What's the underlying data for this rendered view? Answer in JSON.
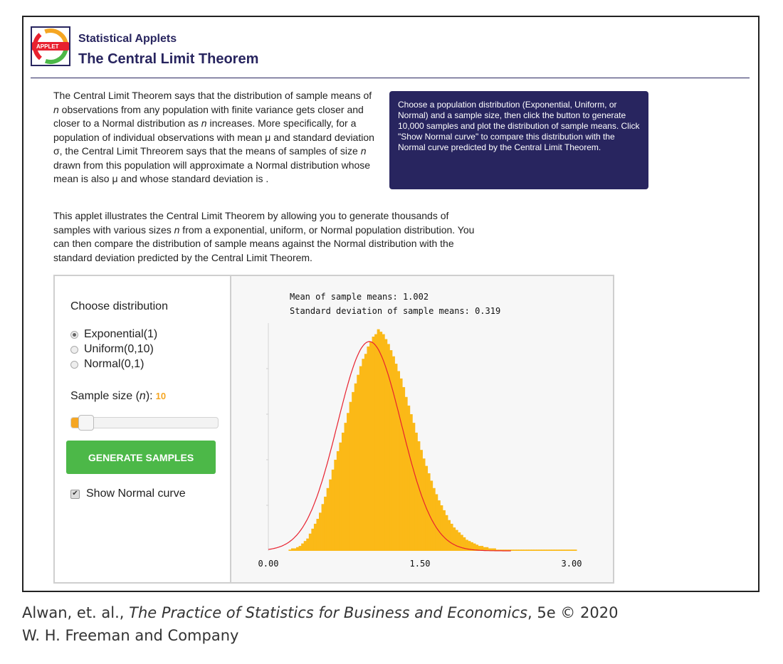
{
  "header": {
    "logo_text": "APPLET",
    "subtitle": "Statistical Applets",
    "title": "The Central Limit Theorem"
  },
  "intro": {
    "p1_parts": [
      "The Central Limit Theorem says that the distribution of sample means  of ",
      "n",
      " observations from any population with finite variance gets closer and closer to a Normal distribution as ",
      "n",
      " increases. More specifically, for a population of individual observations with mean μ and standard deviation σ, the Central Limit Threorem says that the means  of samples of size ",
      "n",
      " drawn from this population will approximate a Normal distribution whose mean is also μ and whose standard deviation is ."
    ],
    "p2_parts": [
      "This applet illustrates the Central Limit Theorem by allowing you to generate thousands of samples with various sizes ",
      "n",
      " from a exponential, uniform, or Normal population distribution. You can then compare the distribution of sample means against the Normal distribution with the standard deviation predicted by the Central Limit Theorem."
    ]
  },
  "infobox": {
    "text": "Choose a population distribution (Exponential, Uniform, or Normal) and a sample size, then click the button to generate 10,000 samples and plot the distribution of sample means. Click \"Show Normal curve\" to compare this distribution with the Normal curve predicted by the Central Limit Theorem."
  },
  "controls": {
    "choose_label": "Choose distribution",
    "options": [
      "Exponential(1)",
      "Uniform(0,10)",
      "Normal(0,1)"
    ],
    "selected_option": "Exponential(1)",
    "sample_size_label_pre": "Sample size (",
    "sample_size_var": "n",
    "sample_size_label_post": "):",
    "sample_size_value": "10",
    "slider_fraction": 0.05,
    "generate_label": "GENERATE SAMPLES",
    "show_curve_label": "Show Normal curve",
    "show_curve_checked": true
  },
  "stats": {
    "mean_line": "Mean of sample means: 1.002",
    "sd_line": "Standard deviation of sample means: 0.319"
  },
  "colors": {
    "brand": "#28255f",
    "bars": "#fbb917",
    "curve": "#e8212f",
    "button": "#4cb848",
    "accent": "#f5a623"
  },
  "chart_data": {
    "type": "bar",
    "title": "",
    "xlabel": "",
    "ylabel": "",
    "xlim": [
      0,
      3.0
    ],
    "x_ticks": [
      "0.00",
      "1.50",
      "3.00"
    ],
    "bin_width": 0.025,
    "x_start": 0.2,
    "values": [
      1,
      2,
      2,
      3,
      4,
      6,
      8,
      10,
      14,
      18,
      22,
      26,
      31,
      38,
      44,
      51,
      58,
      66,
      74,
      81,
      88,
      96,
      104,
      112,
      121,
      129,
      136,
      143,
      150,
      156,
      160,
      166,
      170,
      174,
      176,
      180,
      178,
      176,
      172,
      168,
      163,
      158,
      152,
      146,
      140,
      133,
      125,
      118,
      111,
      104,
      96,
      89,
      82,
      75,
      69,
      63,
      57,
      51,
      46,
      41,
      37,
      33,
      29,
      25,
      22,
      19,
      17,
      15,
      13,
      11,
      9,
      8,
      7,
      6,
      5,
      4,
      4,
      3,
      3,
      2,
      2,
      2,
      1,
      1,
      1,
      1,
      1,
      1,
      1,
      1,
      1,
      1,
      1,
      1,
      1,
      1,
      1,
      1,
      1,
      1,
      1,
      1,
      1,
      1,
      1,
      1,
      1,
      1,
      1,
      1,
      1,
      1,
      1,
      1
    ],
    "y_max": 185,
    "normal_curve": {
      "mean": 1.0,
      "sd": 0.316,
      "peak": 170
    },
    "grid": false
  }
}
